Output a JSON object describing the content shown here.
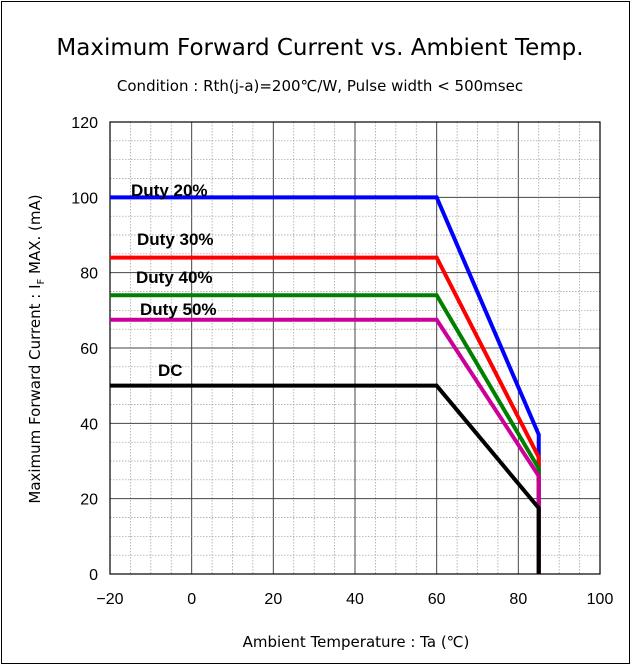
{
  "chart_data": {
    "type": "line",
    "title": "Maximum Forward Current vs. Ambient Temp.",
    "subtitle": "Condition : Rth(j-a)=200℃/W, Pulse width < 500msec",
    "xlabel": "Ambient Temperature : Ta (℃)",
    "ylabel_prefix": "Maximum Forward Current : I",
    "ylabel_sub": "F",
    "ylabel_suffix": " MAX. (mA)",
    "xlim": [
      -20,
      100
    ],
    "ylim": [
      0,
      120
    ],
    "xticks": [
      -20,
      0,
      20,
      40,
      60,
      80,
      100
    ],
    "yticks": [
      0,
      20,
      40,
      60,
      80,
      100,
      120
    ],
    "xtick_labels": [
      "−20",
      "0",
      "20",
      "40",
      "60",
      "80",
      "100"
    ],
    "ytick_labels": [
      "0",
      "20",
      "40",
      "60",
      "80",
      "100",
      "120"
    ],
    "grid": true,
    "series": [
      {
        "name": "Duty 20%",
        "color": "#0000ff",
        "x": [
          -20,
          60,
          85,
          85
        ],
        "y": [
          100,
          100,
          37,
          0
        ]
      },
      {
        "name": "Duty 30%",
        "color": "#ff0000",
        "x": [
          -20,
          60,
          85,
          85
        ],
        "y": [
          84,
          84,
          31,
          0
        ]
      },
      {
        "name": "Duty 40%",
        "color": "#008000",
        "x": [
          -20,
          60,
          85,
          85
        ],
        "y": [
          74,
          74,
          28,
          0
        ]
      },
      {
        "name": "Duty 50%",
        "color": "#cc0099",
        "x": [
          -20,
          60,
          85,
          85
        ],
        "y": [
          67.5,
          67.5,
          26,
          0
        ]
      },
      {
        "name": "DC",
        "color": "#000000",
        "x": [
          -20,
          60,
          85,
          85
        ],
        "y": [
          50,
          50,
          17.5,
          0
        ]
      }
    ]
  }
}
